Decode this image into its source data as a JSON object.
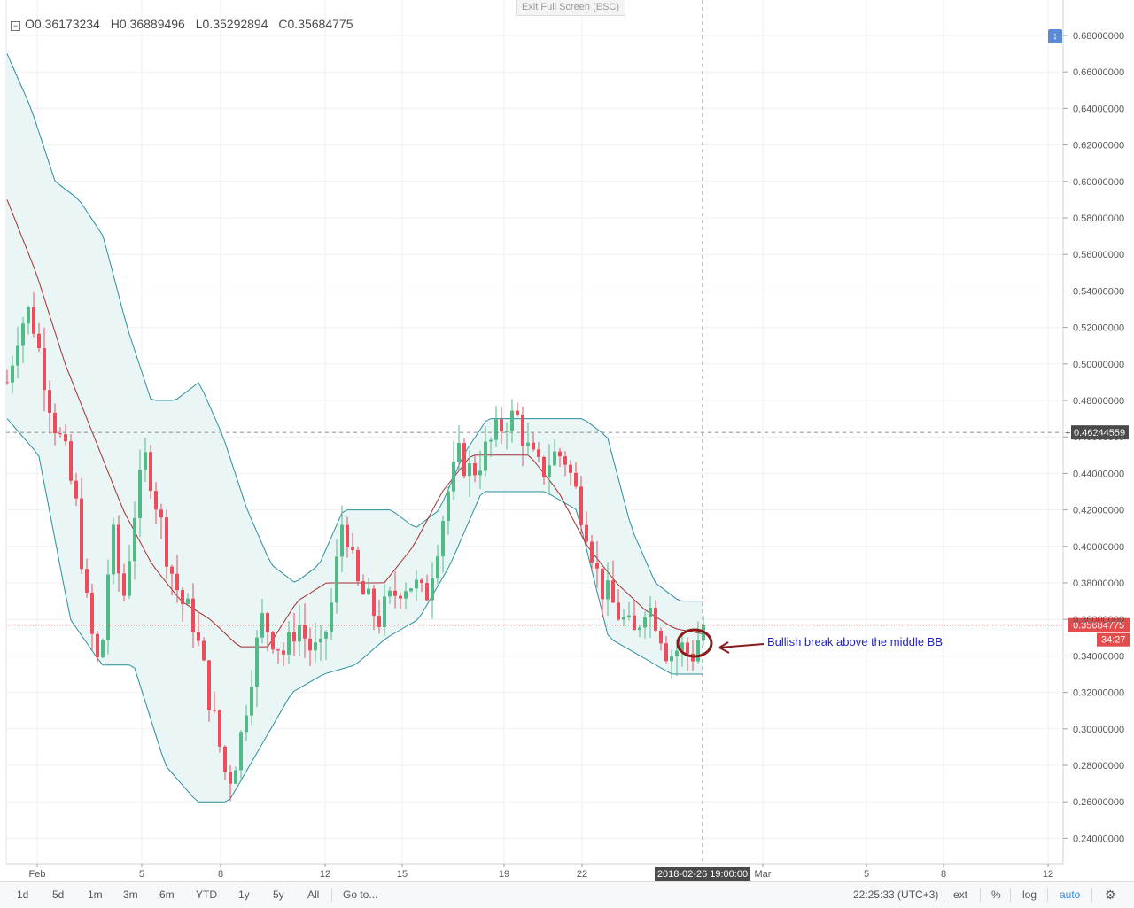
{
  "header": {
    "open_label": "O",
    "open_value": "0.36173234",
    "high_label": "H",
    "high_value": "0.36889496",
    "low_label": "L",
    "low_value": "0.35292894",
    "close_label": "C",
    "close_value": "0.35684775",
    "exit_fullscreen": "Exit Full Screen (ESC)"
  },
  "toolbar": {
    "ranges": [
      "1d",
      "5d",
      "1m",
      "3m",
      "6m",
      "YTD",
      "1y",
      "5y",
      "All"
    ],
    "goto": "Go to...",
    "clock": "22:25:33 (UTC+3)",
    "ext": "ext",
    "percent": "%",
    "log": "log",
    "auto": "auto"
  },
  "colors": {
    "up": "#53b987",
    "down": "#eb4d5c",
    "band": "#2a8f9c",
    "band_fill": "#eaf6f6",
    "middle": "#a32e2e",
    "annotation_text": "#1f1fbf",
    "annotation_mark": "#8b1a1a"
  },
  "chart_data": {
    "type": "candlestick",
    "y_ticks": [
      "0.68000000",
      "0.66000000",
      "0.64000000",
      "0.62000000",
      "0.60000000",
      "0.58000000",
      "0.56000000",
      "0.54000000",
      "0.52000000",
      "0.50000000",
      "0.48000000",
      "0.46000000",
      "0.44000000",
      "0.42000000",
      "0.40000000",
      "0.38000000",
      "0.36000000",
      "0.34000000",
      "0.32000000",
      "0.30000000",
      "0.28000000",
      "0.26000000",
      "0.24000000"
    ],
    "ylim": [
      0.235,
      0.69
    ],
    "x_ticks": [
      "Feb",
      "5",
      "8",
      "12",
      "15",
      "19",
      "22",
      "Mar",
      "5",
      "8",
      "12"
    ],
    "crosshair_price": "0.46244559",
    "crosshair_time": "2018-02-26 19:00:00",
    "last_price": "0.35684775",
    "countdown": "34:27",
    "annotation": "Bullish break above the middle BB",
    "indicator": "Bollinger Bands",
    "bars": 132,
    "close_anchors": [
      0.49,
      0.52,
      0.53,
      0.5,
      0.47,
      0.45,
      0.42,
      0.36,
      0.33,
      0.41,
      0.37,
      0.42,
      0.45,
      0.42,
      0.39,
      0.37,
      0.36,
      0.33,
      0.3,
      0.27,
      0.29,
      0.33,
      0.36,
      0.35,
      0.34,
      0.36,
      0.345,
      0.34,
      0.37,
      0.42,
      0.38,
      0.37,
      0.36,
      0.37,
      0.38,
      0.38,
      0.37,
      0.4,
      0.43,
      0.45,
      0.44,
      0.45,
      0.46,
      0.47,
      0.47,
      0.45,
      0.44,
      0.45,
      0.45,
      0.43,
      0.41,
      0.38,
      0.37,
      0.36,
      0.35,
      0.37,
      0.36,
      0.34,
      0.345,
      0.34,
      0.357
    ],
    "upper_anchors": [
      0.67,
      0.64,
      0.6,
      0.59,
      0.57,
      0.52,
      0.48,
      0.48,
      0.49,
      0.46,
      0.42,
      0.39,
      0.38,
      0.39,
      0.42,
      0.42,
      0.42,
      0.41,
      0.42,
      0.45,
      0.47,
      0.47,
      0.47,
      0.47,
      0.47,
      0.46,
      0.41,
      0.38,
      0.37,
      0.37
    ],
    "middle_anchors": [
      0.59,
      0.55,
      0.5,
      0.46,
      0.42,
      0.39,
      0.37,
      0.36,
      0.345,
      0.345,
      0.37,
      0.38,
      0.38,
      0.38,
      0.4,
      0.43,
      0.45,
      0.45,
      0.45,
      0.43,
      0.4,
      0.38,
      0.365,
      0.355,
      0.352
    ],
    "lower_anchors": [
      0.47,
      0.45,
      0.36,
      0.335,
      0.335,
      0.28,
      0.26,
      0.26,
      0.29,
      0.32,
      0.33,
      0.335,
      0.35,
      0.36,
      0.39,
      0.43,
      0.43,
      0.43,
      0.42,
      0.35,
      0.34,
      0.33,
      0.33
    ]
  }
}
